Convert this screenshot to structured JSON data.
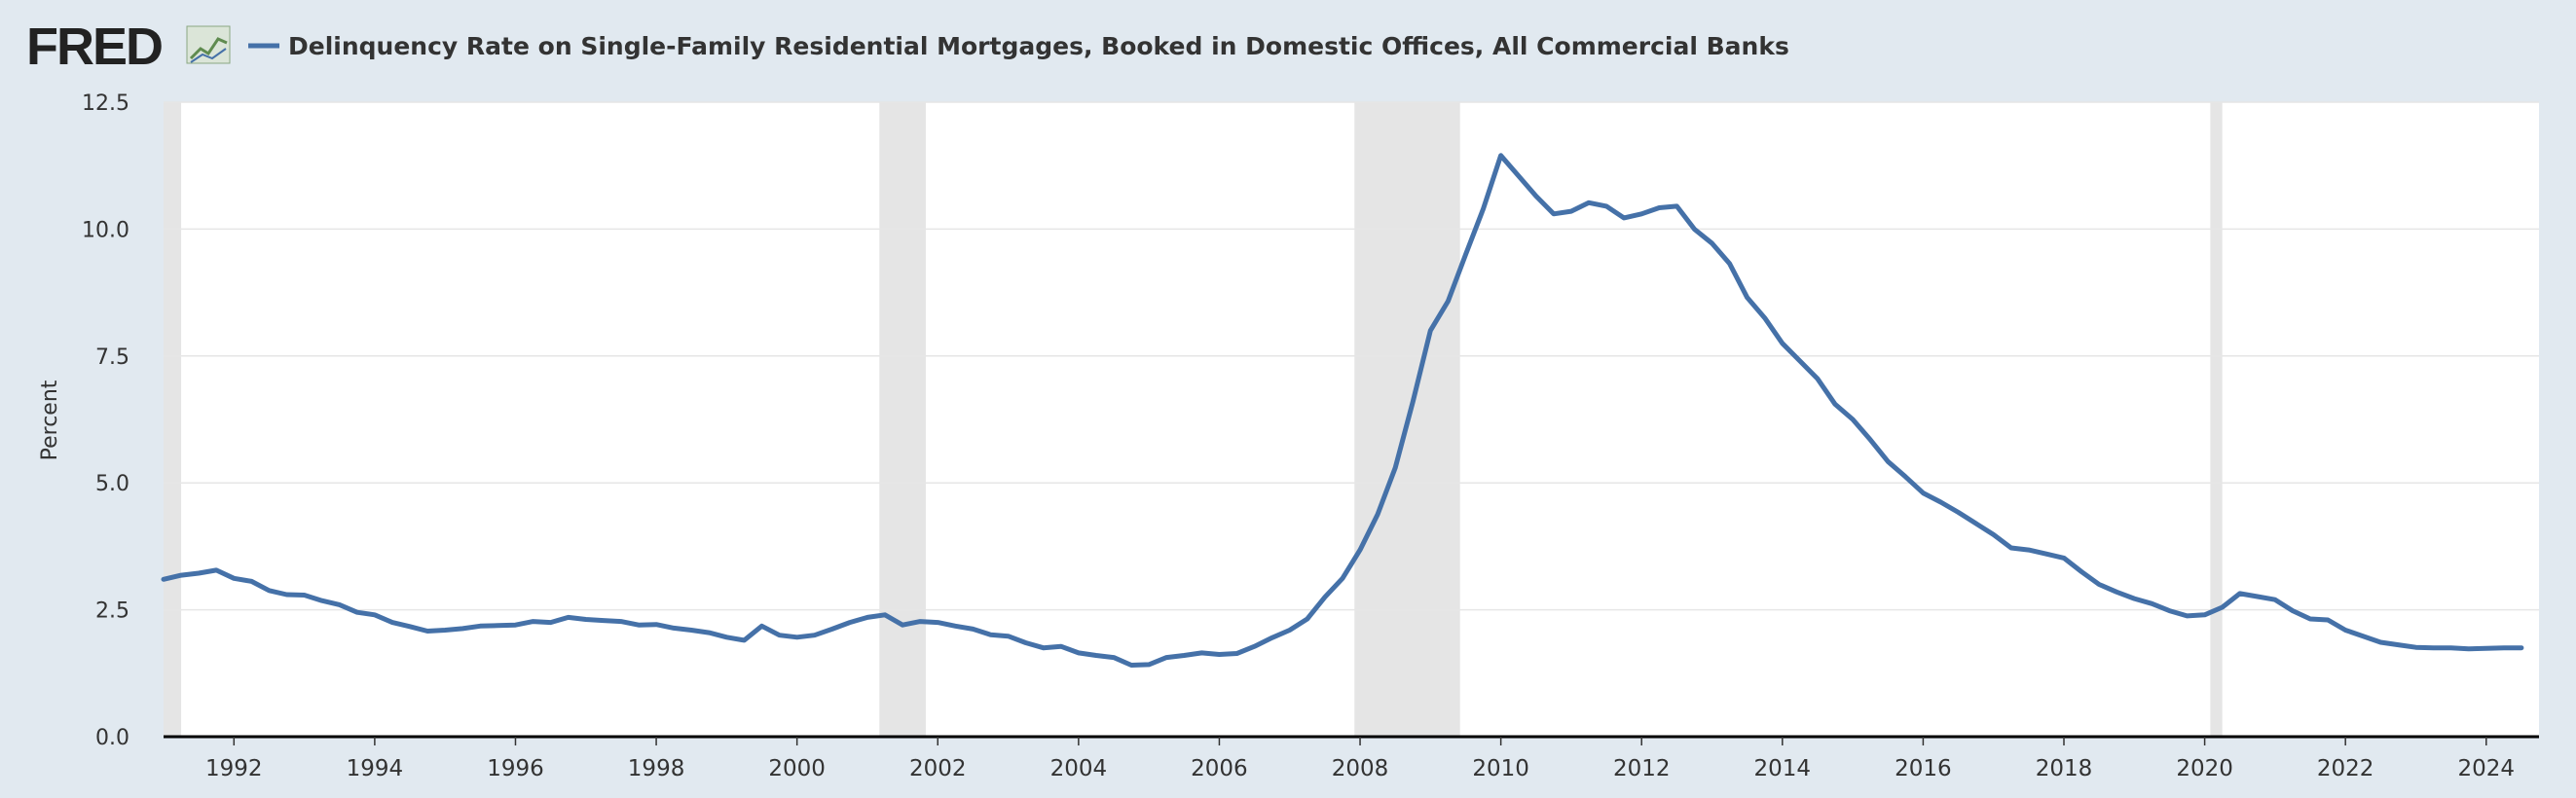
{
  "header": {
    "logo": "FRED",
    "logo_icon": "fred-chart-icon"
  },
  "chart_data": {
    "type": "line",
    "title": "Delinquency Rate on Single-Family Residential Mortgages, Booked in Domestic Offices, All Commercial Banks",
    "xlabel": "",
    "ylabel": "Percent",
    "ylim": [
      0,
      12.5
    ],
    "xlim": [
      1991.0,
      2024.75
    ],
    "grid": true,
    "legend_position": "top-left",
    "colors": {
      "series": "#4571a8",
      "recession": "#e5e5e5",
      "grid": "#e6e6e6",
      "axis": "#000000",
      "background": "#e1e9f0"
    },
    "y_ticks": [
      "0.0",
      "2.5",
      "5.0",
      "7.5",
      "10.0",
      "12.5"
    ],
    "x_ticks": [
      "1992",
      "1994",
      "1996",
      "1998",
      "2000",
      "2002",
      "2004",
      "2006",
      "2008",
      "2010",
      "2012",
      "2014",
      "2016",
      "2018",
      "2020",
      "2022",
      "2024"
    ],
    "recessions": [
      {
        "start": 1991.0,
        "end": 1991.25
      },
      {
        "start": 2001.17,
        "end": 2001.83
      },
      {
        "start": 2007.92,
        "end": 2009.42
      },
      {
        "start": 2020.08,
        "end": 2020.25
      }
    ],
    "series": [
      {
        "name": "Delinquency Rate on Single-Family Residential Mortgages, Booked in Domestic Offices, All Commercial Banks",
        "x": [
          1991.0,
          1991.25,
          1991.5,
          1991.75,
          1992.0,
          1992.25,
          1992.5,
          1992.75,
          1993.0,
          1993.25,
          1993.5,
          1993.75,
          1994.0,
          1994.25,
          1994.5,
          1994.75,
          1995.0,
          1995.25,
          1995.5,
          1995.75,
          1996.0,
          1996.25,
          1996.5,
          1996.75,
          1997.0,
          1997.25,
          1997.5,
          1997.75,
          1998.0,
          1998.25,
          1998.5,
          1998.75,
          1999.0,
          1999.25,
          1999.5,
          1999.75,
          2000.0,
          2000.25,
          2000.5,
          2000.75,
          2001.0,
          2001.25,
          2001.5,
          2001.75,
          2002.0,
          2002.25,
          2002.5,
          2002.75,
          2003.0,
          2003.25,
          2003.5,
          2003.75,
          2004.0,
          2004.25,
          2004.5,
          2004.75,
          2005.0,
          2005.25,
          2005.5,
          2005.75,
          2006.0,
          2006.25,
          2006.5,
          2006.75,
          2007.0,
          2007.25,
          2007.5,
          2007.75,
          2008.0,
          2008.25,
          2008.5,
          2008.75,
          2009.0,
          2009.25,
          2009.5,
          2009.75,
          2010.0,
          2010.25,
          2010.5,
          2010.75,
          2011.0,
          2011.25,
          2011.5,
          2011.75,
          2012.0,
          2012.25,
          2012.5,
          2012.75,
          2013.0,
          2013.25,
          2013.5,
          2013.75,
          2014.0,
          2014.25,
          2014.5,
          2014.75,
          2015.0,
          2015.25,
          2015.5,
          2015.75,
          2016.0,
          2016.25,
          2016.5,
          2016.75,
          2017.0,
          2017.25,
          2017.5,
          2017.75,
          2018.0,
          2018.25,
          2018.5,
          2018.75,
          2019.0,
          2019.25,
          2019.5,
          2019.75,
          2020.0,
          2020.25,
          2020.5,
          2020.75,
          2021.0,
          2021.25,
          2021.5,
          2021.75,
          2022.0,
          2022.25,
          2022.5,
          2022.75,
          2023.0,
          2023.25,
          2023.5,
          2023.75,
          2024.0,
          2024.25,
          2024.5
        ],
        "values": [
          3.1,
          3.18,
          3.22,
          3.28,
          3.12,
          3.06,
          2.88,
          2.8,
          2.79,
          2.68,
          2.6,
          2.45,
          2.4,
          2.25,
          2.17,
          2.08,
          2.1,
          2.13,
          2.18,
          2.19,
          2.2,
          2.27,
          2.25,
          2.35,
          2.31,
          2.29,
          2.27,
          2.2,
          2.21,
          2.14,
          2.1,
          2.05,
          1.96,
          1.9,
          2.18,
          2.0,
          1.96,
          2.0,
          2.12,
          2.25,
          2.35,
          2.4,
          2.2,
          2.27,
          2.25,
          2.18,
          2.12,
          2.01,
          1.98,
          1.85,
          1.75,
          1.78,
          1.65,
          1.6,
          1.56,
          1.41,
          1.42,
          1.56,
          1.6,
          1.65,
          1.62,
          1.64,
          1.78,
          1.95,
          2.1,
          2.32,
          2.75,
          3.12,
          3.68,
          4.38,
          5.3,
          6.6,
          8.0,
          8.58,
          9.5,
          10.4,
          11.45,
          11.05,
          10.65,
          10.3,
          10.35,
          10.52,
          10.45,
          10.22,
          10.3,
          10.42,
          10.45,
          10.0,
          9.72,
          9.32,
          8.65,
          8.25,
          7.75,
          7.4,
          7.05,
          6.55,
          6.25,
          5.85,
          5.42,
          5.12,
          4.8,
          4.62,
          4.42,
          4.2,
          3.98,
          3.72,
          3.68,
          3.6,
          3.52,
          3.25,
          3.0,
          2.85,
          2.72,
          2.62,
          2.48,
          2.38,
          2.4,
          2.55,
          2.82,
          2.76,
          2.7,
          2.48,
          2.32,
          2.3,
          2.1,
          1.98,
          1.86,
          1.81,
          1.76,
          1.75,
          1.75,
          1.73,
          1.74,
          1.75,
          1.75
        ]
      }
    ]
  }
}
